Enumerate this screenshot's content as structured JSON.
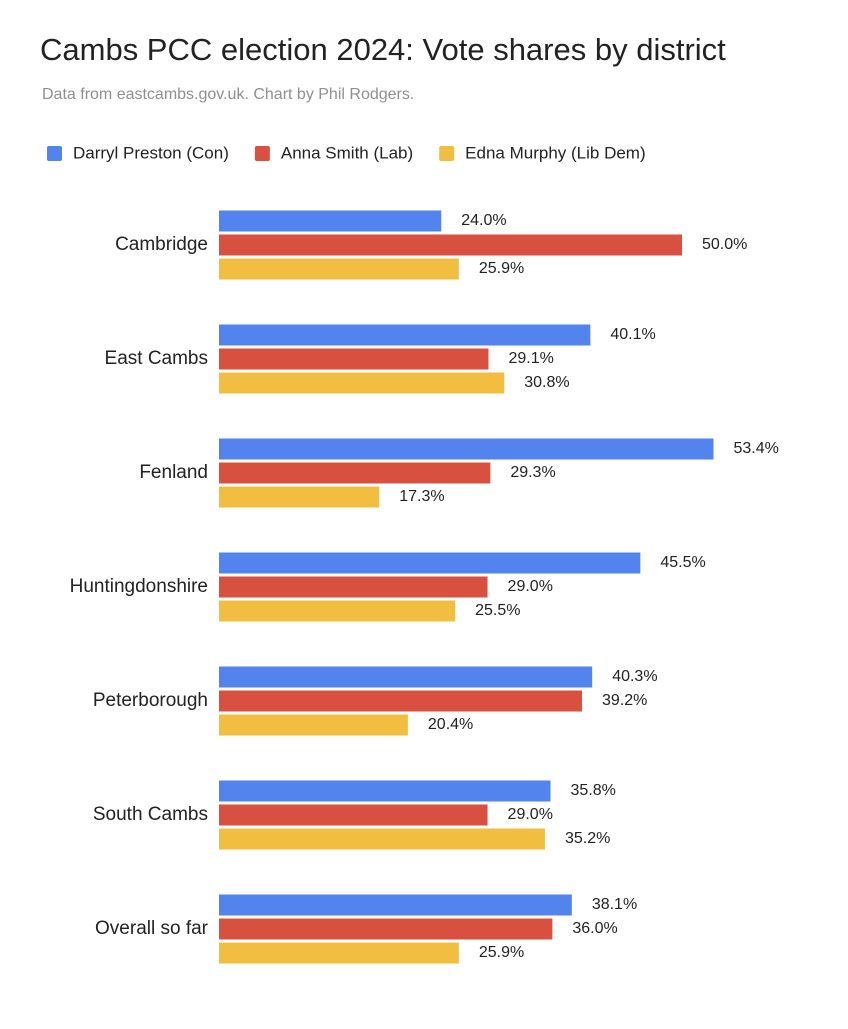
{
  "chart_data": {
    "type": "hbar",
    "title": "Cambs PCC election 2024: Vote shares by district",
    "subtitle": "Data from eastcambs.gov.uk. Chart by Phil Rodgers.",
    "legend": "top",
    "categories": [
      "Cambridge",
      "East Cambs",
      "Fenland",
      "Huntingdonshire",
      "Peterborough",
      "South Cambs",
      "Overall so far"
    ],
    "series": [
      {
        "name": "Darryl Preston (Con)",
        "color": "#5383ec",
        "values": [
          24.0,
          40.1,
          53.4,
          45.5,
          40.3,
          35.8,
          38.1
        ],
        "value_labels": [
          "24.0%",
          "40.1%",
          "53.4%",
          "45.5%",
          "40.3%",
          "35.8%",
          "38.1%"
        ]
      },
      {
        "name": "Anna Smith (Lab)",
        "color": "#d85140",
        "values": [
          50.0,
          29.1,
          29.3,
          29.0,
          39.2,
          29.0,
          36.0
        ],
        "value_labels": [
          "50.0%",
          "29.1%",
          "29.3%",
          "29.0%",
          "39.2%",
          "29.0%",
          "36.0%"
        ]
      },
      {
        "name": "Edna Murphy (Lib Dem)",
        "color": "#f1be42",
        "values": [
          25.9,
          30.8,
          17.3,
          25.5,
          20.4,
          35.2,
          25.9
        ],
        "value_labels": [
          "25.9%",
          "30.8%",
          "17.3%",
          "25.5%",
          "20.4%",
          "35.2%",
          "25.9%"
        ]
      }
    ]
  }
}
